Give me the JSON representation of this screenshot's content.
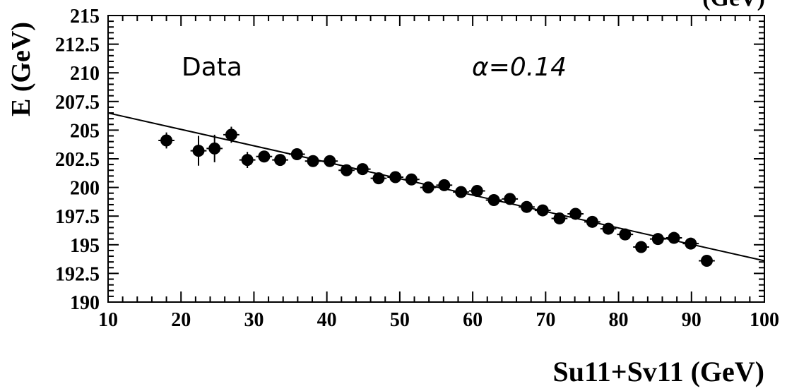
{
  "chart_data": {
    "type": "scatter",
    "xlabel": "Su11+Sv11 (GeV)",
    "ylabel": "E (GeV)",
    "xlim": [
      10,
      100
    ],
    "ylim": [
      190,
      215
    ],
    "xticks": [
      10,
      20,
      30,
      40,
      50,
      60,
      70,
      80,
      90,
      100
    ],
    "xtick_labels": [
      "10",
      "20",
      "30",
      "40",
      "50",
      "60",
      "70",
      "80",
      "90",
      "100"
    ],
    "yticks": [
      190,
      192.5,
      195,
      197.5,
      200,
      202.5,
      205,
      207.5,
      210,
      212.5,
      215
    ],
    "ytick_labels": [
      "190",
      "192.5",
      "195",
      "197.5",
      "200",
      "202.5",
      "205",
      "207.5",
      "210",
      "212.5",
      "215"
    ],
    "annotations": [
      "Data",
      "α=0.14"
    ],
    "fit_line": {
      "x": [
        10,
        100
      ],
      "y": [
        206.5,
        193.6
      ]
    },
    "series": [
      {
        "x": [
          18.0,
          22.4,
          24.6,
          26.9,
          29.1,
          31.4,
          33.6,
          35.9,
          38.1,
          40.4,
          42.7,
          44.9,
          47.1,
          49.4,
          51.6,
          53.9,
          56.1,
          58.4,
          60.6,
          62.9,
          65.1,
          67.4,
          69.6,
          71.9,
          74.1,
          76.4,
          78.6,
          80.9,
          83.1,
          85.4,
          87.6,
          89.9,
          92.1
        ],
        "y": [
          204.1,
          203.2,
          203.4,
          204.6,
          202.4,
          202.7,
          202.4,
          202.9,
          202.3,
          202.3,
          201.5,
          201.6,
          200.8,
          200.9,
          200.7,
          200.0,
          200.2,
          199.6,
          199.7,
          198.9,
          199.0,
          198.3,
          198.0,
          197.3,
          197.7,
          197.0,
          196.4,
          195.9,
          194.8,
          195.5,
          195.6,
          195.1,
          193.6
        ],
        "yerr": [
          0.7,
          1.3,
          1.2,
          0.7,
          0.7,
          0.4,
          0.4,
          0.4,
          0.3,
          0.3,
          0.3,
          0.3,
          0.3,
          0.3,
          0.3,
          0.3,
          0.3,
          0.3,
          0.3,
          0.3,
          0.3,
          0.3,
          0.3,
          0.3,
          0.3,
          0.3,
          0.3,
          0.3,
          0.3,
          0.3,
          0.3,
          0.3,
          0.3
        ],
        "xerr": 1.1
      }
    ]
  },
  "corner_fragment": "(GeV)"
}
